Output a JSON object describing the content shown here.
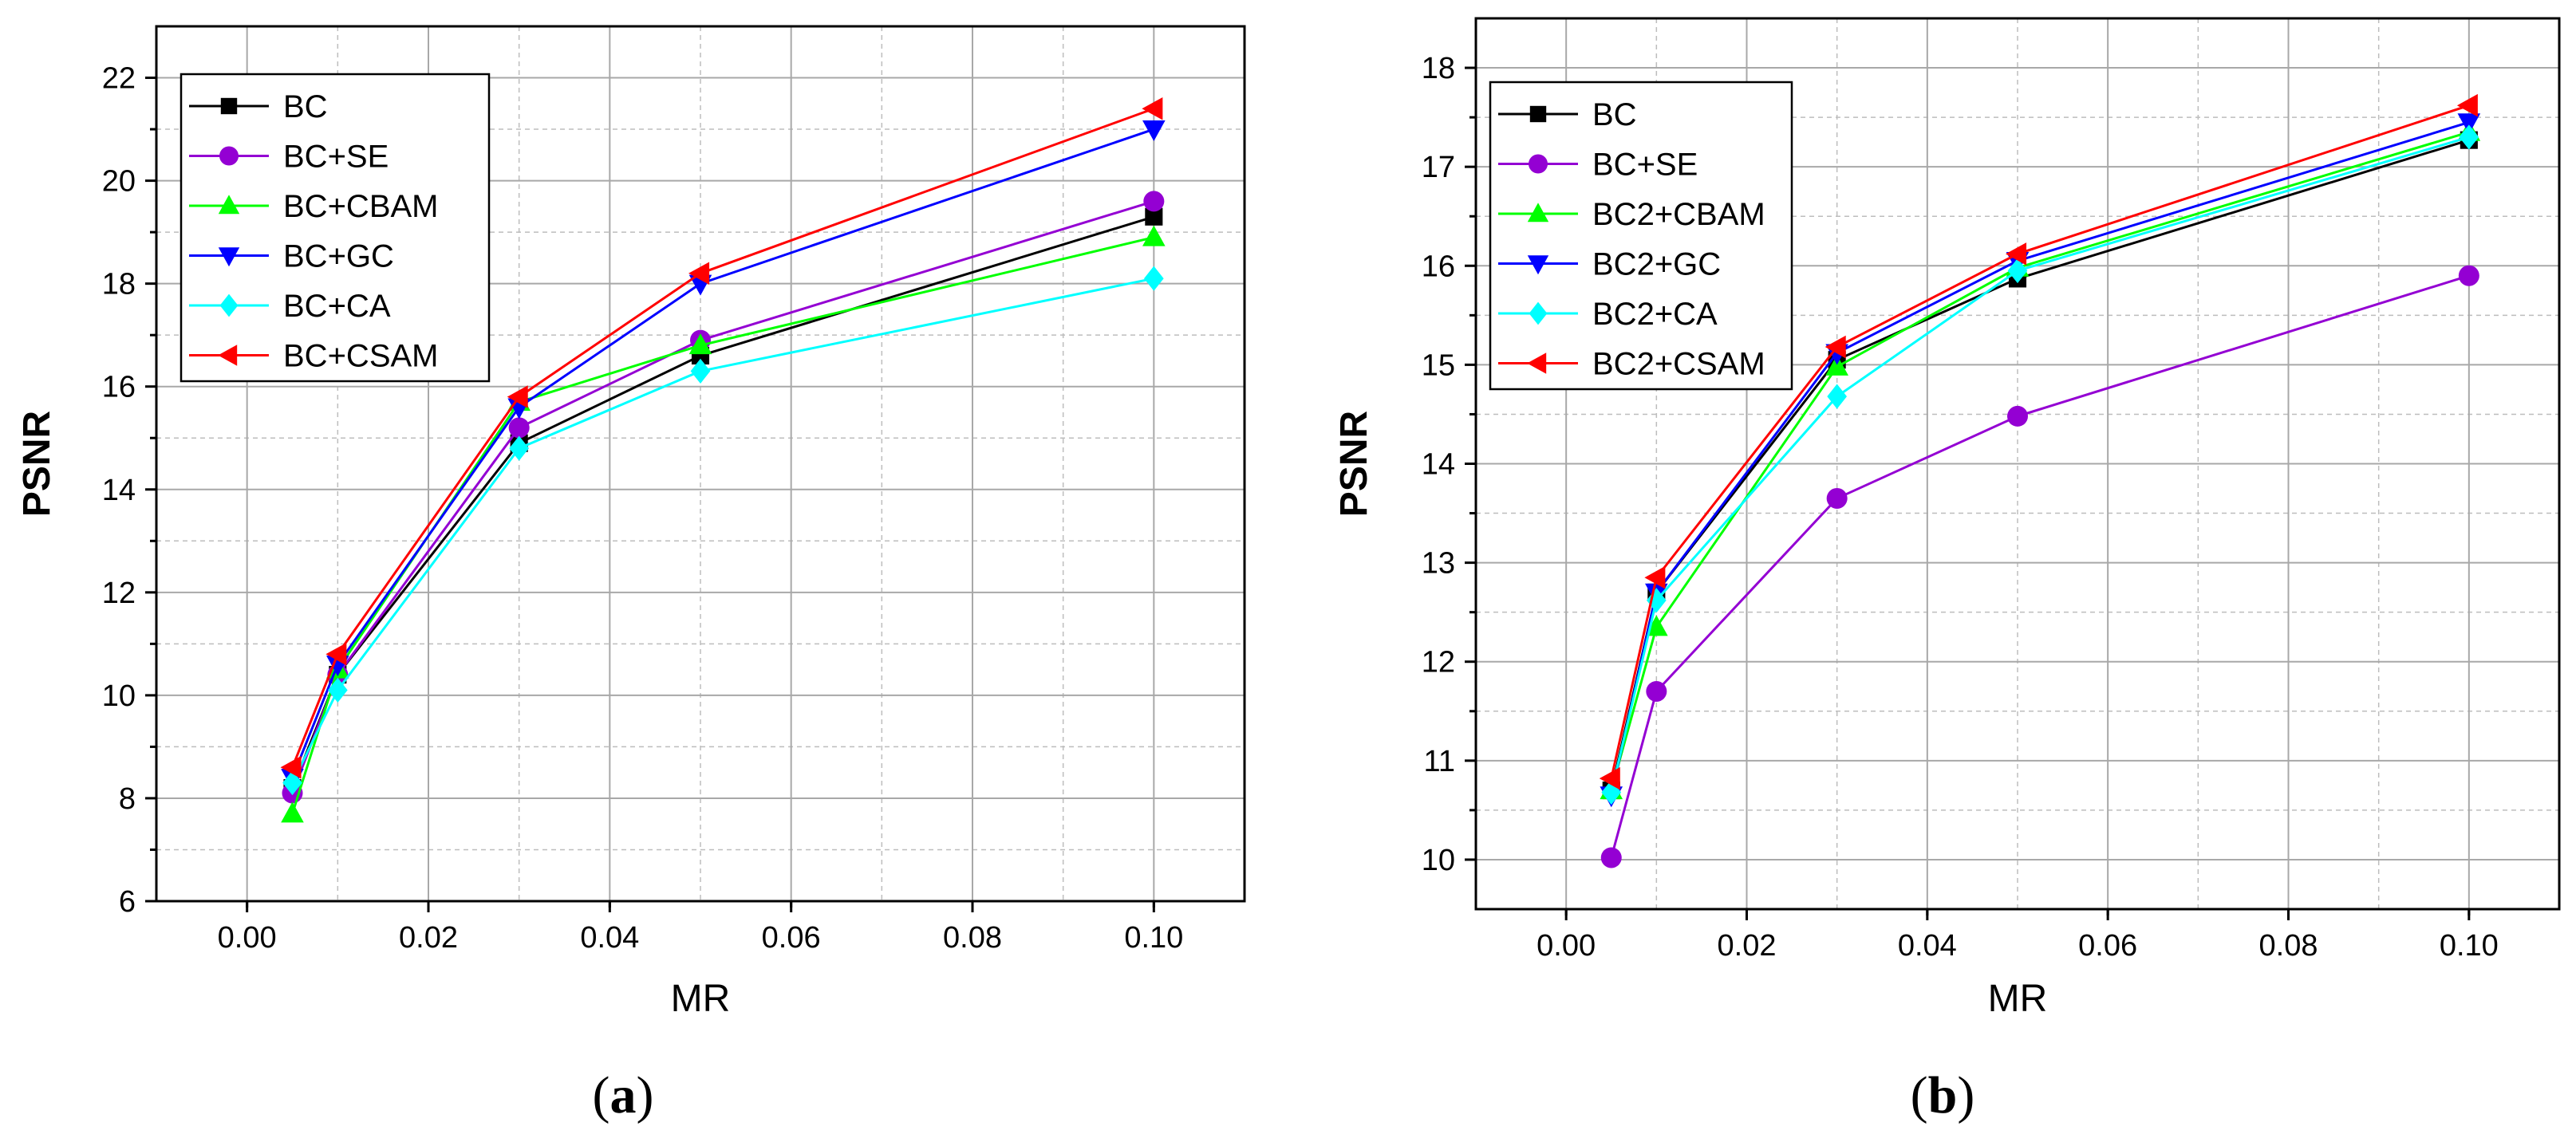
{
  "chart_data": [
    {
      "type": "line",
      "caption": {
        "open": "(",
        "letter": "a",
        "close": ")"
      },
      "xlabel": "MR",
      "ylabel": "PSNR",
      "xlim": [
        -0.01,
        0.11
      ],
      "ylim": [
        6,
        23
      ],
      "xticks": [
        0.0,
        0.02,
        0.04,
        0.06,
        0.08,
        0.1
      ],
      "xtick_labels": [
        "0.00",
        "0.02",
        "0.04",
        "0.06",
        "0.08",
        "0.10"
      ],
      "yticks": [
        6,
        8,
        10,
        12,
        14,
        16,
        18,
        20,
        22
      ],
      "ytick_labels": [
        "6",
        "8",
        "10",
        "12",
        "14",
        "16",
        "18",
        "20",
        "22"
      ],
      "grid": true,
      "legend_position": "top-left",
      "x": [
        0.005,
        0.01,
        0.03,
        0.05,
        0.1
      ],
      "series": [
        {
          "name": "BC",
          "color": "#000000",
          "marker": "square",
          "values": [
            8.2,
            10.4,
            14.9,
            16.6,
            19.3
          ]
        },
        {
          "name": "BC+SE",
          "color": "#9400D3",
          "marker": "circle",
          "values": [
            8.1,
            10.4,
            15.2,
            16.9,
            19.6
          ]
        },
        {
          "name": "BC+CBAM",
          "color": "#00FF00",
          "marker": "triangle-up",
          "values": [
            7.7,
            10.5,
            15.7,
            16.8,
            18.9
          ]
        },
        {
          "name": "BC+GC",
          "color": "#0000FF",
          "marker": "triangle-down",
          "values": [
            8.4,
            10.6,
            15.6,
            18.0,
            21.0
          ]
        },
        {
          "name": "BC+CA",
          "color": "#00FFFF",
          "marker": "diamond",
          "values": [
            8.3,
            10.1,
            14.8,
            16.3,
            18.1
          ]
        },
        {
          "name": "BC+CSAM",
          "color": "#FF0000",
          "marker": "triangle-left",
          "values": [
            8.6,
            10.8,
            15.8,
            18.2,
            21.4
          ]
        }
      ]
    },
    {
      "type": "line",
      "caption": {
        "open": "(",
        "letter": "b",
        "close": ")"
      },
      "xlabel": "MR",
      "ylabel": "PSNR",
      "xlim": [
        -0.01,
        0.11
      ],
      "ylim": [
        9.5,
        18.5
      ],
      "xticks": [
        0.0,
        0.02,
        0.04,
        0.06,
        0.08,
        0.1
      ],
      "xtick_labels": [
        "0.00",
        "0.02",
        "0.04",
        "0.06",
        "0.08",
        "0.10"
      ],
      "yticks": [
        10,
        11,
        12,
        13,
        14,
        15,
        16,
        17,
        18
      ],
      "ytick_labels": [
        "10",
        "11",
        "12",
        "13",
        "14",
        "15",
        "16",
        "17",
        "18"
      ],
      "grid": true,
      "legend_position": "top-left",
      "x": [
        0.005,
        0.01,
        0.03,
        0.05,
        0.1
      ],
      "series": [
        {
          "name": "BC",
          "color": "#000000",
          "marker": "square",
          "values": [
            10.7,
            12.7,
            15.05,
            15.87,
            17.27
          ]
        },
        {
          "name": "BC+SE",
          "color": "#9400D3",
          "marker": "circle",
          "values": [
            10.02,
            11.7,
            13.65,
            14.48,
            15.9
          ]
        },
        {
          "name": "BC2+CBAM",
          "color": "#00FF00",
          "marker": "triangle-up",
          "values": [
            10.7,
            12.35,
            14.98,
            15.98,
            17.35
          ]
        },
        {
          "name": "BC2+GC",
          "color": "#0000FF",
          "marker": "triangle-down",
          "values": [
            10.65,
            12.7,
            15.12,
            16.05,
            17.45
          ]
        },
        {
          "name": "BC2+CA",
          "color": "#00FFFF",
          "marker": "diamond",
          "values": [
            10.68,
            12.62,
            14.68,
            15.95,
            17.3
          ]
        },
        {
          "name": "BC2+CSAM",
          "color": "#FF0000",
          "marker": "triangle-left",
          "values": [
            10.82,
            12.85,
            15.18,
            16.12,
            17.62
          ]
        }
      ]
    }
  ]
}
